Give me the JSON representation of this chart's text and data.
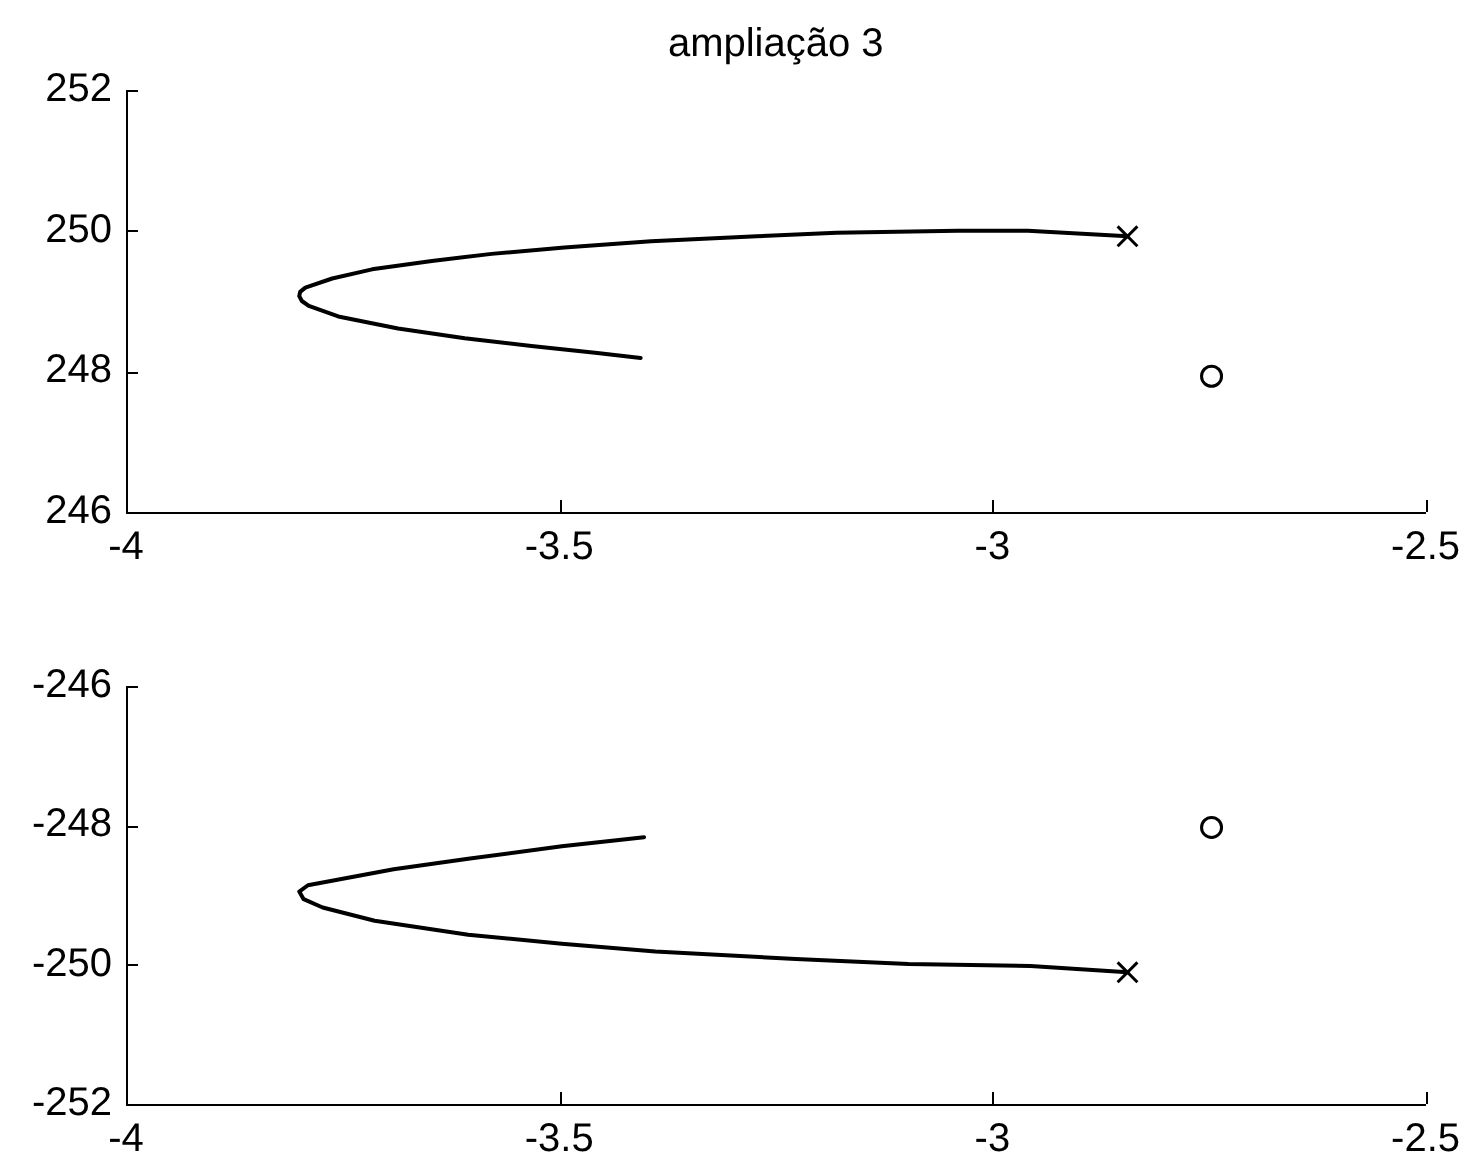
{
  "chart_data": [
    {
      "type": "line",
      "title": "ampliação 3",
      "xlim": [
        -4,
        -2.5
      ],
      "xticks": [
        -4,
        -3.5,
        -3,
        -2.5
      ],
      "ylim": [
        246,
        252
      ],
      "yticks": [
        246,
        248,
        250,
        252
      ],
      "series": [
        {
          "type": "line",
          "color": "#000000",
          "marker": "none",
          "x": [
            -2.844,
            -2.959,
            -3.04,
            -3.18,
            -3.272,
            -3.394,
            -3.494,
            -3.578,
            -3.647,
            -3.716,
            -3.762,
            -3.793,
            -3.799,
            -3.8,
            -3.797,
            -3.789,
            -3.755,
            -3.686,
            -3.609,
            -3.532,
            -3.456,
            -3.406
          ],
          "values": [
            249.92,
            250.0,
            250.0,
            249.97,
            249.92,
            249.85,
            249.76,
            249.67,
            249.57,
            249.45,
            249.32,
            249.19,
            249.13,
            249.07,
            249.0,
            248.93,
            248.78,
            248.61,
            248.47,
            248.36,
            248.26,
            248.19
          ]
        },
        {
          "type": "scatter",
          "color": "#000000",
          "marker": "cross",
          "x": [
            -2.844
          ],
          "values": [
            249.92
          ]
        },
        {
          "type": "scatter",
          "color": "#000000",
          "marker": "circle",
          "x": [
            -2.747
          ],
          "values": [
            247.93
          ]
        }
      ]
    },
    {
      "type": "line",
      "xlim": [
        -4,
        -2.5
      ],
      "xticks": [
        -4,
        -3.5,
        -3,
        -2.5
      ],
      "ylim": [
        -252,
        -246
      ],
      "yticks": [
        -252,
        -250,
        -248,
        -246
      ],
      "series": [
        {
          "type": "line",
          "color": "#000000",
          "marker": "none",
          "x": [
            -2.844,
            -2.956,
            -3.097,
            -3.227,
            -3.389,
            -3.497,
            -3.605,
            -3.713,
            -3.773,
            -3.795,
            -3.8,
            -3.79,
            -3.756,
            -3.691,
            -3.605,
            -3.497,
            -3.402
          ],
          "values": [
            -250.11,
            -250.02,
            -249.99,
            -249.92,
            -249.81,
            -249.7,
            -249.57,
            -249.37,
            -249.18,
            -249.06,
            -248.95,
            -248.86,
            -248.78,
            -248.63,
            -248.48,
            -248.3,
            -248.17
          ]
        },
        {
          "type": "scatter",
          "color": "#000000",
          "marker": "cross",
          "x": [
            -2.844
          ],
          "values": [
            -250.11
          ]
        },
        {
          "type": "scatter",
          "color": "#000000",
          "marker": "circle",
          "x": [
            -2.747
          ],
          "values": [
            -248.03
          ]
        }
      ]
    }
  ]
}
